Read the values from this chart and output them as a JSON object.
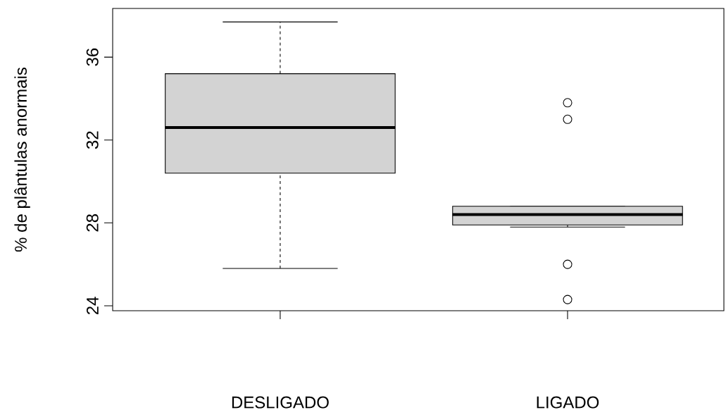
{
  "chart_data": {
    "type": "box",
    "ylabel": "% de plântulas anormais",
    "categories": [
      "DESLIGADO",
      "LIGADO"
    ],
    "boxes": [
      {
        "low": 25.8,
        "q1": 30.4,
        "median": 32.6,
        "q3": 35.2,
        "high": 37.7
      },
      {
        "low": 27.8,
        "q1": 27.9,
        "median": 28.4,
        "q3": 28.8,
        "high": 28.8,
        "outliers": [
          33.8,
          33.0,
          26.0,
          24.3
        ]
      }
    ],
    "color": "#d3d3d3",
    "ylim": [
      23.76,
      38.35
    ],
    "yticks": [
      24,
      28,
      32,
      36
    ]
  }
}
